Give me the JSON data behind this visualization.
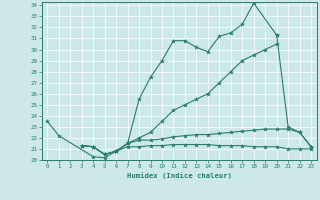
{
  "xlabel": "Humidex (Indice chaleur)",
  "x_values": [
    0,
    1,
    2,
    3,
    4,
    5,
    6,
    7,
    8,
    9,
    10,
    11,
    12,
    13,
    14,
    15,
    16,
    17,
    18,
    19,
    20,
    21,
    22,
    23
  ],
  "line_top": [
    23.5,
    22.2,
    null,
    null,
    20.3,
    20.2,
    20.8,
    21.5,
    25.5,
    27.5,
    29.0,
    30.8,
    30.8,
    30.2,
    29.8,
    31.2,
    31.5,
    32.3,
    34.2,
    null,
    31.3,
    null,
    null,
    null
  ],
  "line_diag": [
    null,
    null,
    null,
    null,
    null,
    null,
    null,
    null,
    null,
    null,
    null,
    null,
    null,
    null,
    null,
    null,
    null,
    null,
    null,
    null,
    31.3,
    23.0,
    22.5,
    21.2
  ],
  "line_mid": [
    null,
    null,
    null,
    21.3,
    21.2,
    20.5,
    20.8,
    21.5,
    22.0,
    22.5,
    23.5,
    24.5,
    25.0,
    25.5,
    26.0,
    27.0,
    28.0,
    29.0,
    29.5,
    30.0,
    30.5,
    null,
    null,
    null
  ],
  "line_flat1": [
    null,
    null,
    null,
    21.3,
    21.2,
    20.5,
    20.8,
    21.5,
    21.8,
    21.8,
    21.9,
    22.1,
    22.2,
    22.3,
    22.3,
    22.4,
    22.5,
    22.6,
    22.7,
    22.8,
    22.8,
    22.8,
    22.5,
    21.2
  ],
  "line_flat2": [
    null,
    null,
    null,
    21.3,
    21.2,
    20.5,
    20.8,
    21.2,
    21.2,
    21.3,
    21.3,
    21.4,
    21.4,
    21.4,
    21.4,
    21.3,
    21.3,
    21.3,
    21.2,
    21.2,
    21.2,
    21.0,
    21.0,
    21.0
  ],
  "bg_color": "#cce8e8",
  "grid_color": "#ffffff",
  "line_color": "#2a7d6e",
  "ylim": [
    20,
    34
  ],
  "xlim": [
    -0.5,
    23.5
  ]
}
